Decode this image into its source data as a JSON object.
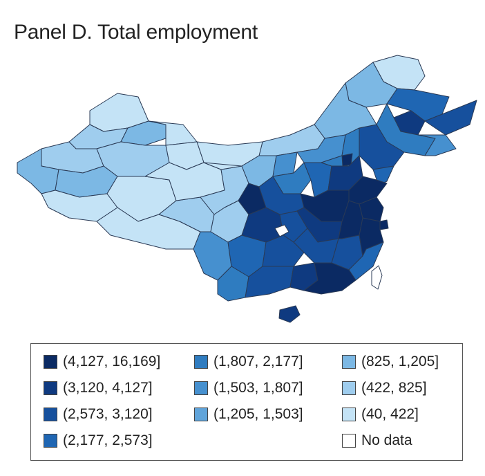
{
  "title": "Panel D. Total employment",
  "colors": {
    "c1": "#0b2a63",
    "c2": "#0f3a80",
    "c3": "#16509d",
    "c4": "#1f66b3",
    "c5": "#2f7cc0",
    "c6": "#4690cf",
    "c7": "#60a4da",
    "c8": "#7cb8e4",
    "c9": "#9fcdee",
    "c10": "#c4e3f6",
    "nodata": "#ffffff",
    "border": "#2a3a55"
  },
  "legend": [
    {
      "label": "(4,127, 16,169]",
      "color": "#0b2a63"
    },
    {
      "label": "(3,120, 4,127]",
      "color": "#0f3a80"
    },
    {
      "label": "(2,573, 3,120]",
      "color": "#16509d"
    },
    {
      "label": "(2,177, 2,573]",
      "color": "#1f66b3"
    },
    {
      "label": "(1,807, 2,177]",
      "color": "#2f7cc0"
    },
    {
      "label": "(1,503, 1,807]",
      "color": "#4690cf"
    },
    {
      "label": "(1,205, 1,503]",
      "color": "#60a4da"
    },
    {
      "label": "(825, 1,205]",
      "color": "#7cb8e4"
    },
    {
      "label": "(422, 825]",
      "color": "#9fcdee"
    },
    {
      "label": "(40, 422]",
      "color": "#c4e3f6"
    },
    {
      "label": "No data",
      "color": "#ffffff"
    }
  ]
}
